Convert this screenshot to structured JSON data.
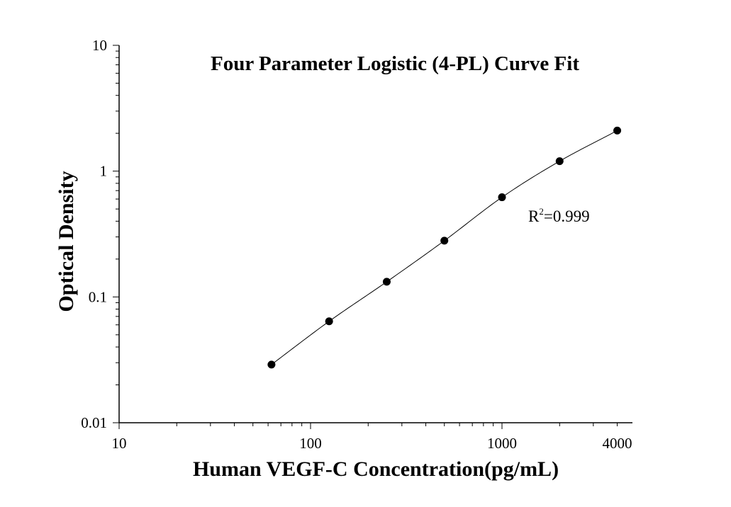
{
  "chart_data": {
    "type": "scatter",
    "title": "Four Parameter Logistic (4-PL) Curve Fit",
    "xlabel": "Human VEGF-C Concentration(pg/mL)",
    "ylabel": "Optical Density",
    "x_scale": "log",
    "y_scale": "log",
    "xlim": [
      10,
      4500
    ],
    "ylim": [
      0.01,
      10
    ],
    "x_ticks": [
      {
        "value": 10,
        "label": "10"
      },
      {
        "value": 100,
        "label": "100"
      },
      {
        "value": 1000,
        "label": "1000"
      },
      {
        "value": 4000,
        "label": "4000"
      }
    ],
    "y_ticks": [
      {
        "value": 0.01,
        "label": "0.01"
      },
      {
        "value": 0.1,
        "label": "0.1"
      },
      {
        "value": 1,
        "label": "1"
      },
      {
        "value": 10,
        "label": "10"
      }
    ],
    "grid": false,
    "series": [
      {
        "x": [
          62.5,
          125,
          250,
          500,
          1000,
          2000,
          4000
        ],
        "y": [
          0.029,
          0.064,
          0.132,
          0.28,
          0.62,
          1.2,
          2.1
        ]
      }
    ],
    "fit": {
      "model": "4-PL",
      "r2_label": "R",
      "r2_sup": "2",
      "r2_value": "=0.999"
    }
  }
}
